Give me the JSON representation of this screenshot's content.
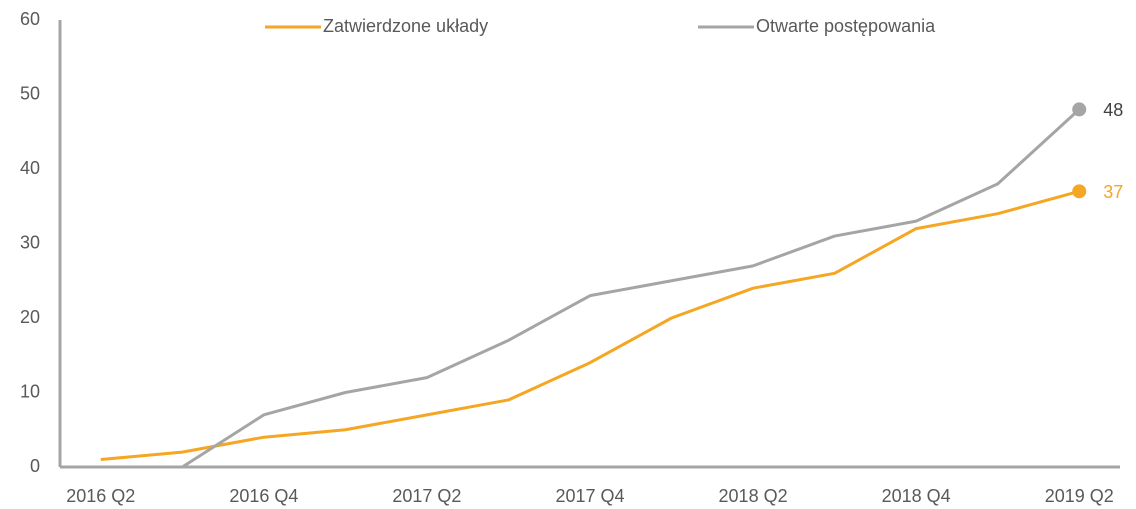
{
  "chart_data": {
    "type": "line",
    "categories": [
      "2016 Q2",
      null,
      "2016 Q4",
      null,
      "2017 Q2",
      null,
      "2017 Q4",
      null,
      "2018 Q2",
      null,
      "2018 Q4",
      null,
      "2019 Q2"
    ],
    "series": [
      {
        "name": "Zatwierdzone układy",
        "color": "#f5a623",
        "values": [
          1,
          2,
          4,
          5,
          7,
          9,
          14,
          20,
          24,
          26,
          32,
          34,
          37
        ]
      },
      {
        "name": "Otwarte postępowania",
        "color": "#a5a5a5",
        "values": [
          null,
          0,
          7,
          10,
          12,
          17,
          23,
          25,
          27,
          31,
          33,
          38,
          48
        ]
      }
    ],
    "ylim": [
      0,
      60
    ],
    "yticks": [
      0,
      10,
      20,
      30,
      40,
      50,
      60
    ],
    "grid": false,
    "legend": "top"
  }
}
